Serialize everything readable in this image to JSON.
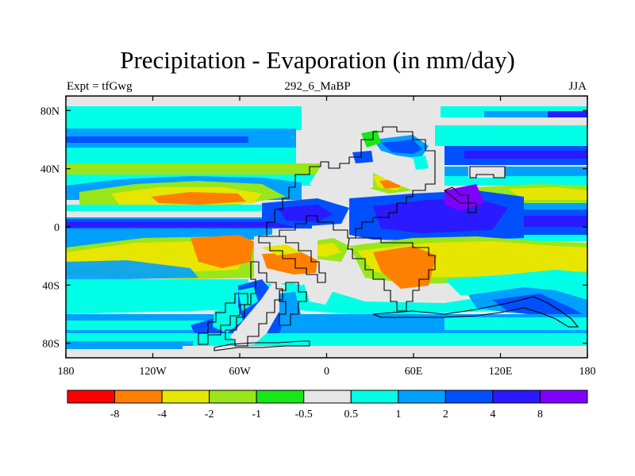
{
  "title": "Precipitation - Evaporation (in mm/day)",
  "subtitle_left": "Expt = tfGwg",
  "subtitle_center": "292_6_MaBP",
  "subtitle_right": "JJA",
  "map": {
    "lon_ticks": [
      {
        "value": -180,
        "label": "180"
      },
      {
        "value": -120,
        "label": "120W"
      },
      {
        "value": -60,
        "label": "60W"
      },
      {
        "value": 0,
        "label": "0"
      },
      {
        "value": 60,
        "label": "60E"
      },
      {
        "value": 120,
        "label": "120E"
      },
      {
        "value": 180,
        "label": "180"
      }
    ],
    "lat_ticks": [
      {
        "value": 80,
        "label": "80N"
      },
      {
        "value": 40,
        "label": "40N"
      },
      {
        "value": 0,
        "label": "0"
      },
      {
        "value": -40,
        "label": "40S"
      },
      {
        "value": -80,
        "label": "80S"
      }
    ],
    "lon_range": [
      -180,
      180
    ],
    "lat_range": [
      -90,
      90
    ]
  },
  "colorbar": {
    "colors": [
      "#ff0000",
      "#ff8000",
      "#e6e600",
      "#99e61a",
      "#19e619",
      "#e6e6e6",
      "#00ffe6",
      "#00a0ff",
      "#0050ff",
      "#2a1aff",
      "#8000ff"
    ],
    "labels": [
      "-8",
      "-4",
      "-2",
      "-1",
      "-0.5",
      "0.5",
      "1",
      "2",
      "4",
      "8"
    ]
  }
}
